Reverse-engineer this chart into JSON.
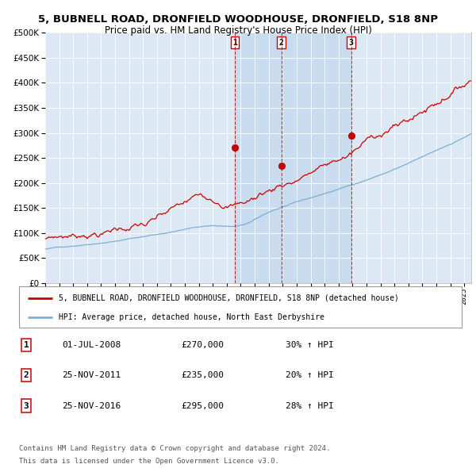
{
  "title_line1": "5, BUBNELL ROAD, DRONFIELD WOODHOUSE, DRONFIELD, S18 8NP",
  "title_line2": "Price paid vs. HM Land Registry's House Price Index (HPI)",
  "legend_red": "5, BUBNELL ROAD, DRONFIELD WOODHOUSE, DRONFIELD, S18 8NP (detached house)",
  "legend_blue": "HPI: Average price, detached house, North East Derbyshire",
  "transactions": [
    {
      "num": 1,
      "date": "01-JUL-2008",
      "date_float": 2008.58,
      "price": 270000,
      "hpi_pct": "30% ↑ HPI"
    },
    {
      "num": 2,
      "date": "25-NOV-2011",
      "date_float": 2011.9,
      "price": 235000,
      "hpi_pct": "20% ↑ HPI"
    },
    {
      "num": 3,
      "date": "25-NOV-2016",
      "date_float": 2016.9,
      "price": 295000,
      "hpi_pct": "28% ↑ HPI"
    }
  ],
  "ylim": [
    0,
    500000
  ],
  "yticks": [
    0,
    50000,
    100000,
    150000,
    200000,
    250000,
    300000,
    350000,
    400000,
    450000,
    500000
  ],
  "xmin": 1995.0,
  "xmax": 2025.5,
  "background_color": "#ffffff",
  "plot_bg_color": "#dce9f5",
  "grid_color": "#ffffff",
  "red_line_color": "#cc0000",
  "blue_line_color": "#7bafd4",
  "vline_color": "#cc0000",
  "shade_color": "#c5d9ee",
  "footer_line1": "Contains HM Land Registry data © Crown copyright and database right 2024.",
  "footer_line2": "This data is licensed under the Open Government Licence v3.0."
}
